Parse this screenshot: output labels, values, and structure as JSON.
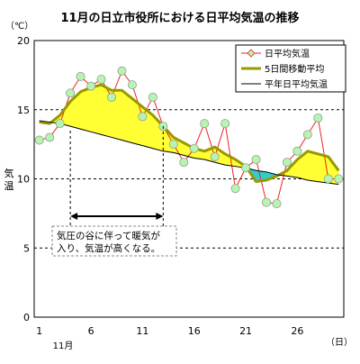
{
  "chart_data": {
    "type": "line",
    "title": "11月の日立市役所における日平均気温の推移",
    "xlabel": "11月",
    "ylabel": "気温",
    "y_unit": "（℃）",
    "x_unit": "（日）",
    "xlim": [
      1,
      30
    ],
    "ylim": [
      0,
      20
    ],
    "x_ticks": [
      1,
      6,
      11,
      16,
      21,
      26
    ],
    "y_ticks": [
      0,
      5,
      10,
      15,
      20
    ],
    "grid": "horizontal dashed",
    "legend_position": "top-right",
    "days": [
      1,
      2,
      3,
      4,
      5,
      6,
      7,
      8,
      9,
      10,
      11,
      12,
      13,
      14,
      15,
      16,
      17,
      18,
      19,
      20,
      21,
      22,
      23,
      24,
      25,
      26,
      27,
      28,
      29,
      30
    ],
    "series": [
      {
        "name": "日平均気温",
        "color": "#ee2222",
        "marker_color": "#b5f5b0",
        "values": [
          12.8,
          13.0,
          14.0,
          16.2,
          17.4,
          16.7,
          17.2,
          15.9,
          17.8,
          16.8,
          14.5,
          15.9,
          13.8,
          12.5,
          11.2,
          12.2,
          14.0,
          11.6,
          14.0,
          9.3,
          10.8,
          11.4,
          8.3,
          8.2,
          11.2,
          12.0,
          13.2,
          14.4,
          10.0,
          10.0
        ]
      },
      {
        "name": "5日間移動平均",
        "color": "#999900",
        "values": [
          14.1,
          14.0,
          14.6,
          15.6,
          16.3,
          16.6,
          16.8,
          16.4,
          16.4,
          15.8,
          15.2,
          14.6,
          13.8,
          13.0,
          12.6,
          12.2,
          12.0,
          12.3,
          11.8,
          11.4,
          10.9,
          9.8,
          9.9,
          10.2,
          10.6,
          11.4,
          12.0,
          11.8,
          11.6,
          10.6
        ]
      },
      {
        "name": "平年日平均気温",
        "color": "#000000",
        "values": [
          14.2,
          14.1,
          14.0,
          13.8,
          13.6,
          13.4,
          13.2,
          13.0,
          12.8,
          12.6,
          12.4,
          12.2,
          12.0,
          11.9,
          11.7,
          11.5,
          11.4,
          11.2,
          11.0,
          10.9,
          10.8,
          10.6,
          10.5,
          10.3,
          10.2,
          10.1,
          9.9,
          9.8,
          9.7,
          9.6
        ]
      }
    ],
    "fill_above_normal_color": "#ffff33",
    "fill_below_normal_color": "#33cccc",
    "annotation": {
      "text_line1": "気圧の谷に伴って暖気が",
      "text_line2": "入り、気温が高くなる。",
      "span_start_day": 4,
      "span_end_day": 13
    }
  }
}
